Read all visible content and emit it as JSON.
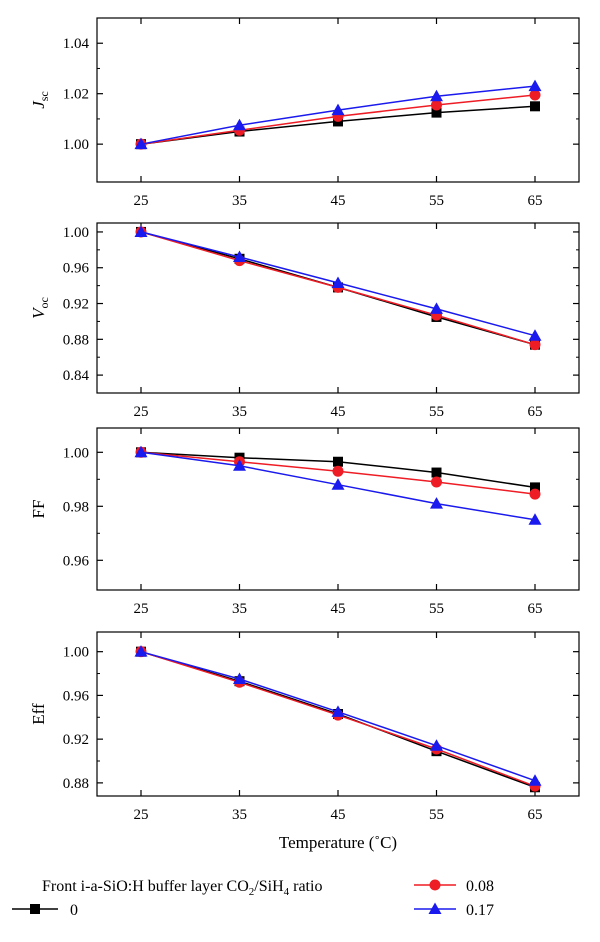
{
  "chart_data": {
    "type": "line",
    "x_values": [
      25,
      35,
      45,
      55,
      65
    ],
    "x_ticks": [
      "25",
      "35",
      "45",
      "55",
      "65"
    ],
    "xlabel": "Temperature (˚C)",
    "legend": {
      "title_parts": [
        "Front i-a-SiO:H buffer layer CO",
        "2",
        "/SiH",
        "4",
        " ratio"
      ],
      "placement": "bottom"
    },
    "series_styles": [
      {
        "name": "0",
        "color": "#000000",
        "marker": "square"
      },
      {
        "name": "0.08",
        "color": "#ee1c24",
        "marker": "circle"
      },
      {
        "name": "0.17",
        "color": "#1a1aee",
        "marker": "triangle"
      }
    ],
    "panels": [
      {
        "ylabel_main": "J",
        "ylabel_sub": "sc",
        "ylabel_italic": true,
        "ylim": [
          0.985,
          1.05
        ],
        "yticks": [
          1.0,
          1.02,
          1.04
        ],
        "ytick_labels": [
          "1.00",
          "1.02",
          "1.04"
        ],
        "series": [
          {
            "name": "0",
            "values": [
              1.0,
              1.005,
              1.009,
              1.0125,
              1.015
            ]
          },
          {
            "name": "0.08",
            "values": [
              1.0,
              1.0055,
              1.011,
              1.0155,
              1.0195
            ]
          },
          {
            "name": "0.17",
            "values": [
              1.0,
              1.0075,
              1.0135,
              1.019,
              1.023
            ]
          }
        ]
      },
      {
        "ylabel_main": "V",
        "ylabel_sub": "oc",
        "ylabel_italic": true,
        "ylim": [
          0.82,
          1.01
        ],
        "yticks": [
          0.84,
          0.88,
          0.92,
          0.96,
          1.0
        ],
        "ytick_labels": [
          "0.84",
          "0.88",
          "0.92",
          "0.96",
          "1.00"
        ],
        "series": [
          {
            "name": "0",
            "values": [
              1.0,
              0.97,
              0.938,
              0.905,
              0.874
            ]
          },
          {
            "name": "0.08",
            "values": [
              1.0,
              0.968,
              0.938,
              0.907,
              0.874
            ]
          },
          {
            "name": "0.17",
            "values": [
              1.0,
              0.972,
              0.943,
              0.914,
              0.884
            ]
          }
        ]
      },
      {
        "ylabel_main": "FF",
        "ylabel_sub": "",
        "ylabel_italic": false,
        "ylim": [
          0.949,
          1.009
        ],
        "yticks": [
          0.96,
          0.98,
          1.0
        ],
        "ytick_labels": [
          "0.96",
          "0.98",
          "1.00"
        ],
        "series": [
          {
            "name": "0",
            "values": [
              1.0,
              0.998,
              0.9965,
              0.9925,
              0.987
            ]
          },
          {
            "name": "0.08",
            "values": [
              1.0,
              0.9965,
              0.993,
              0.989,
              0.9845
            ]
          },
          {
            "name": "0.17",
            "values": [
              1.0,
              0.995,
              0.988,
              0.981,
              0.975
            ]
          }
        ]
      },
      {
        "ylabel_main": "Eff",
        "ylabel_sub": "",
        "ylabel_italic": false,
        "ylim": [
          0.868,
          1.018
        ],
        "yticks": [
          0.88,
          0.92,
          0.96,
          1.0
        ],
        "ytick_labels": [
          "0.88",
          "0.92",
          "0.96",
          "1.00"
        ],
        "series": [
          {
            "name": "0",
            "values": [
              1.0,
              0.973,
              0.943,
              0.909,
              0.876
            ]
          },
          {
            "name": "0.08",
            "values": [
              1.0,
              0.972,
              0.942,
              0.911,
              0.877
            ]
          },
          {
            "name": "0.17",
            "values": [
              1.0,
              0.975,
              0.945,
              0.914,
              0.882
            ]
          }
        ]
      }
    ]
  }
}
